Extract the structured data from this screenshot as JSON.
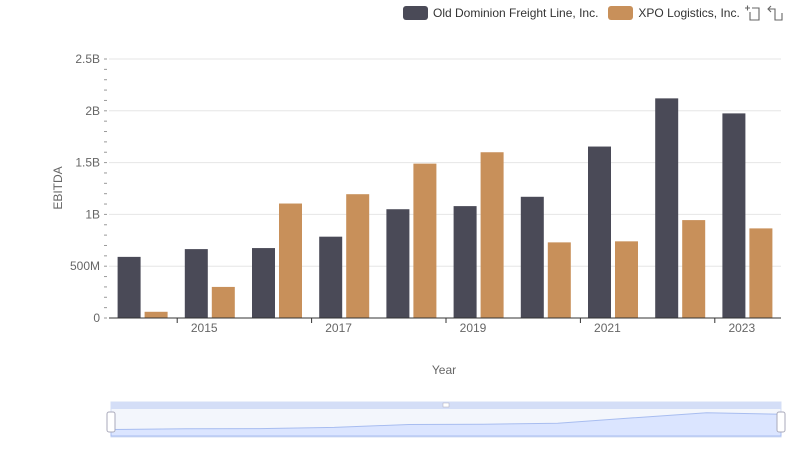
{
  "chart_data": {
    "type": "bar",
    "x": [
      2014,
      2015,
      2016,
      2017,
      2018,
      2019,
      2020,
      2021,
      2022,
      2023
    ],
    "x_ticks": [
      "2015",
      "2017",
      "2019",
      "2021",
      "2023"
    ],
    "series": [
      {
        "name": "Old Dominion Freight Line, Inc.",
        "color": "#4a4a57",
        "values": [
          590000000,
          665000000,
          675000000,
          785000000,
          1050000000,
          1080000000,
          1170000000,
          1655000000,
          2120000000,
          1975000000
        ]
      },
      {
        "name": "XPO Logistics, Inc.",
        "color": "#c8905a",
        "values": [
          60000000,
          300000000,
          1105000000,
          1195000000,
          1490000000,
          1600000000,
          730000000,
          740000000,
          945000000,
          865000000
        ]
      }
    ],
    "xlabel": "Year",
    "ylabel": "EBITDA",
    "ylim": [
      0,
      2500000000
    ],
    "y_ticks": [
      {
        "value": 0,
        "label": "0"
      },
      {
        "value": 500000000,
        "label": "500M"
      },
      {
        "value": 1000000000,
        "label": "1B"
      },
      {
        "value": 1500000000,
        "label": "1.5B"
      },
      {
        "value": 2000000000,
        "label": "2B"
      },
      {
        "value": 2500000000,
        "label": "2.5B"
      }
    ],
    "grid": true,
    "legend_position": "top-right"
  },
  "toolbar": {
    "icons": [
      "zoom-icon",
      "restore-icon"
    ]
  }
}
